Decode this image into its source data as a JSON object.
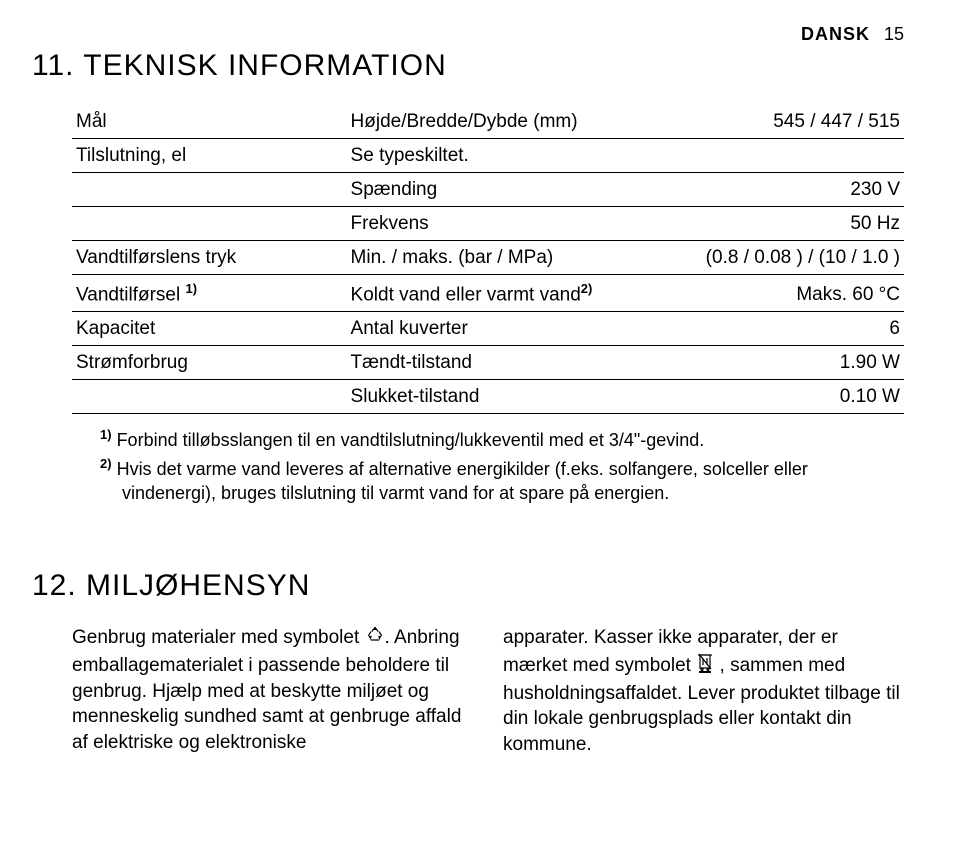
{
  "header": {
    "language": "DANSK",
    "page_number": "15"
  },
  "section11": {
    "title": "11. TEKNISK INFORMATION",
    "rows": [
      {
        "c1": "Mål",
        "c2": "Højde/Bredde/Dybde (mm)",
        "c3": "545 / 447 / 515"
      },
      {
        "c1": "Tilslutning, el",
        "c2": "Se typeskiltet.",
        "c3": ""
      },
      {
        "c1": "",
        "c2": "Spænding",
        "c3": "230 V"
      },
      {
        "c1": "",
        "c2": "Frekvens",
        "c3": "50 Hz"
      },
      {
        "c1": "Vandtilførslens tryk",
        "c2": "Min. / maks. (bar / MPa)",
        "c3": "(0.8 / 0.08 ) / (10 / 1.0 )"
      }
    ],
    "row_watersupply": {
      "c1_pre": "Vandtilførsel ",
      "c1_sup": "1)",
      "c2_pre": "Koldt vand eller varmt vand",
      "c2_sup": "2)",
      "c3": "Maks. 60 °C"
    },
    "rows_after": [
      {
        "c1": "Kapacitet",
        "c2": "Antal kuverter",
        "c3": "6"
      },
      {
        "c1": "Strømforbrug",
        "c2": "Tændt-tilstand",
        "c3": "1.90 W"
      },
      {
        "c1": "",
        "c2": "Slukket-tilstand",
        "c3": "0.10 W"
      }
    ],
    "footnote1_num": "1)",
    "footnote1_text": " Forbind tilløbsslangen til en vandtilslutning/lukkeventil med et 3/4\"-gevind.",
    "footnote2_num": "2)",
    "footnote2_text": " Hvis det varme vand leveres af alternative energikilder (f.eks. solfangere, solceller eller vindenergi), bruges tilslutning til varmt vand for at spare på energien."
  },
  "section12": {
    "title": "12. MILJØHENSYN",
    "left_pre": "Genbrug materialer med symbolet ",
    "left_post": ". Anbring emballagematerialet i passende beholdere til genbrug. Hjælp med at beskytte miljøet og menneskelig sundhed samt at genbruge affald af elektriske og elektroniske",
    "right_pre": "apparater. Kasser ikke apparater, der er mærket med symbolet ",
    "right_post": " , sammen med husholdningsaffaldet. Lever produktet tilbage til din lokale genbrugsplads eller kontakt din kommune."
  }
}
